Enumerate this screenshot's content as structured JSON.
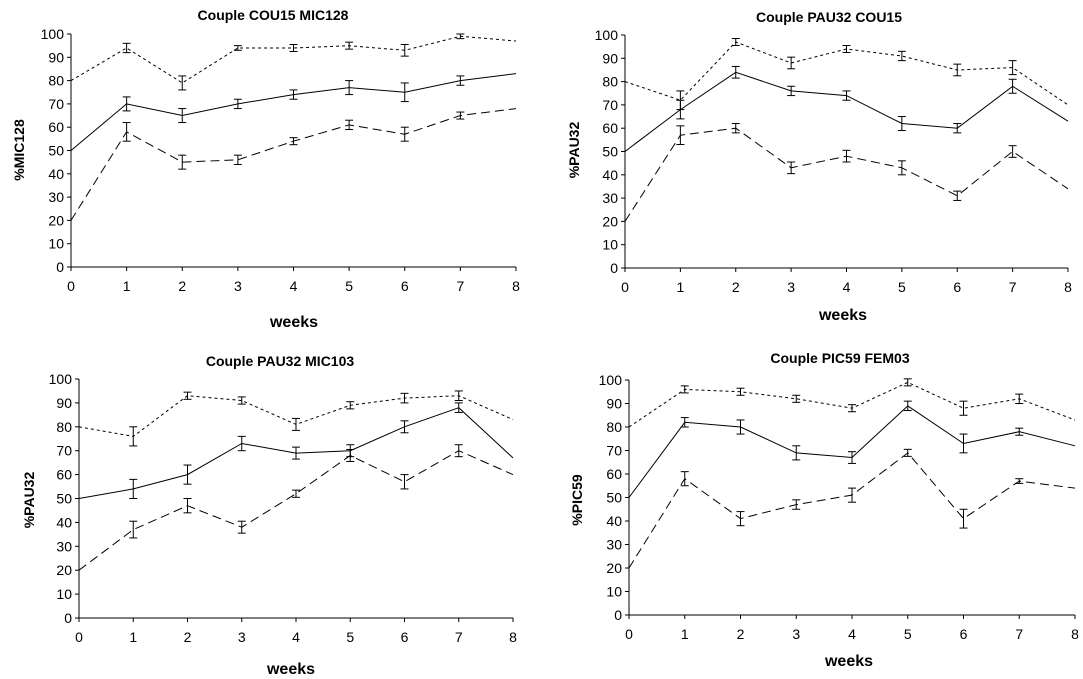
{
  "chart_data": [
    {
      "type": "line",
      "title": "Couple COU15 MIC128",
      "xlabel": "weeks",
      "ylabel": "%MIC128",
      "xlim": [
        0,
        8
      ],
      "ylim": [
        0,
        100
      ],
      "x_ticks": [
        "0",
        "1",
        "2",
        "3",
        "4",
        "5",
        "6",
        "7",
        "8"
      ],
      "y_ticks": [
        "0",
        "10",
        "20",
        "30",
        "40",
        "50",
        "60",
        "70",
        "80",
        "90",
        "100"
      ],
      "grid": false,
      "legend": "none",
      "x": [
        0,
        1,
        2,
        3,
        4,
        5,
        6,
        7,
        8
      ],
      "series": [
        {
          "style": "dotted",
          "values": [
            80,
            94,
            79,
            94,
            94,
            95,
            93,
            99,
            97
          ],
          "err": [
            0,
            2,
            3,
            1,
            1.5,
            1.5,
            2.5,
            1,
            0
          ]
        },
        {
          "style": "solid",
          "values": [
            50,
            70,
            65,
            70,
            74,
            77,
            75,
            80,
            83
          ],
          "err": [
            0,
            3,
            3,
            2,
            2,
            3,
            4,
            2,
            0
          ]
        },
        {
          "style": "dashed",
          "values": [
            20,
            58,
            45,
            46,
            54,
            61,
            57,
            65,
            68
          ],
          "err": [
            0,
            4,
            3,
            2,
            1.5,
            2,
            3,
            1.5,
            0
          ]
        }
      ]
    },
    {
      "type": "line",
      "title": "Couple PAU32 COU15",
      "xlabel": "weeks",
      "ylabel": "%PAU32",
      "xlim": [
        0,
        8
      ],
      "ylim": [
        0,
        100
      ],
      "x_ticks": [
        "0",
        "1",
        "2",
        "3",
        "4",
        "5",
        "6",
        "7",
        "8"
      ],
      "y_ticks": [
        "0",
        "10",
        "20",
        "30",
        "40",
        "50",
        "60",
        "70",
        "80",
        "90",
        "100"
      ],
      "grid": false,
      "legend": "none",
      "x": [
        0,
        1,
        2,
        3,
        4,
        5,
        6,
        7,
        8
      ],
      "series": [
        {
          "style": "dotted",
          "values": [
            80,
            72,
            97,
            88,
            94,
            91,
            85,
            86,
            70
          ],
          "err": [
            0,
            4,
            1.5,
            2.5,
            1.5,
            2,
            2.5,
            3,
            0
          ]
        },
        {
          "style": "solid",
          "values": [
            50,
            68,
            84,
            76,
            74,
            62,
            60,
            78,
            63
          ],
          "err": [
            0,
            4,
            2.5,
            2,
            2,
            3,
            2,
            3,
            0
          ]
        },
        {
          "style": "dashed",
          "values": [
            20,
            57,
            60,
            43,
            48,
            43,
            31,
            50,
            34
          ],
          "err": [
            0,
            4,
            2,
            2.5,
            2.5,
            3,
            2,
            2.5,
            0
          ]
        }
      ]
    },
    {
      "type": "line",
      "title": "Couple PAU32 MIC103",
      "xlabel": "weeks",
      "ylabel": "%PAU32",
      "xlim": [
        0,
        8
      ],
      "ylim": [
        0,
        100
      ],
      "x_ticks": [
        "0",
        "1",
        "2",
        "3",
        "4",
        "5",
        "6",
        "7",
        "8"
      ],
      "y_ticks": [
        "0",
        "10",
        "20",
        "30",
        "40",
        "50",
        "60",
        "70",
        "80",
        "90",
        "100"
      ],
      "grid": false,
      "legend": "none",
      "x": [
        0,
        1,
        2,
        3,
        4,
        5,
        6,
        7,
        8
      ],
      "series": [
        {
          "style": "dotted",
          "values": [
            80,
            76,
            93,
            91,
            81,
            89,
            92,
            93,
            83
          ],
          "err": [
            0,
            4,
            1.5,
            1.5,
            2.5,
            1.5,
            2,
            2,
            0
          ]
        },
        {
          "style": "solid",
          "values": [
            50,
            54,
            60,
            73,
            69,
            70,
            80,
            88,
            67
          ],
          "err": [
            0,
            4,
            4,
            3,
            2.5,
            2.5,
            2.5,
            2,
            0
          ]
        },
        {
          "style": "dashed",
          "values": [
            20,
            37,
            47,
            38,
            52,
            68,
            57,
            70,
            60
          ],
          "err": [
            0,
            3.5,
            3,
            2.5,
            1.5,
            2.5,
            3,
            2.5,
            0
          ]
        }
      ]
    },
    {
      "type": "line",
      "title": "Couple PIC59 FEM03",
      "xlabel": "weeks",
      "ylabel": "%PIC59",
      "xlim": [
        0,
        8
      ],
      "ylim": [
        0,
        100
      ],
      "x_ticks": [
        "0",
        "1",
        "2",
        "3",
        "4",
        "5",
        "6",
        "7",
        "8"
      ],
      "y_ticks": [
        "0",
        "10",
        "20",
        "30",
        "40",
        "50",
        "60",
        "70",
        "80",
        "90",
        "100"
      ],
      "grid": false,
      "legend": "none",
      "x": [
        0,
        1,
        2,
        3,
        4,
        5,
        6,
        7,
        8
      ],
      "series": [
        {
          "style": "dotted",
          "values": [
            80,
            96,
            95,
            92,
            88,
            99,
            88,
            92,
            83
          ],
          "err": [
            0,
            1.5,
            1.5,
            1.5,
            1.5,
            1.5,
            3,
            2,
            0
          ]
        },
        {
          "style": "solid",
          "values": [
            50,
            82,
            80,
            69,
            67,
            89,
            73,
            78,
            72
          ],
          "err": [
            0,
            2,
            3,
            3,
            2.5,
            2,
            4,
            1.5,
            0
          ]
        },
        {
          "style": "dashed",
          "values": [
            20,
            58,
            41,
            47,
            51,
            69,
            41,
            57,
            54
          ],
          "err": [
            0,
            3,
            3,
            2,
            3,
            1.5,
            4,
            1,
            0
          ]
        }
      ]
    }
  ]
}
